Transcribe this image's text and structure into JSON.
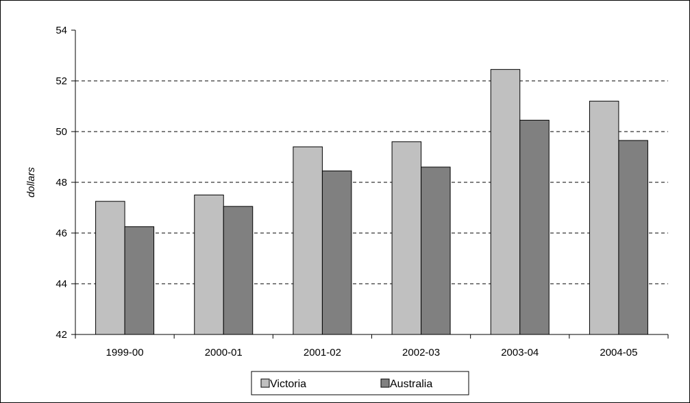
{
  "chart_data": {
    "type": "bar",
    "title": "",
    "xlabel": "",
    "ylabel": "dollars",
    "categories": [
      "1999-00",
      "2000-01",
      "2001-02",
      "2002-03",
      "2003-04",
      "2004-05"
    ],
    "series": [
      {
        "name": "Victoria",
        "values": [
          47.25,
          47.5,
          49.4,
          49.6,
          52.45,
          51.2
        ],
        "color": "#c0c0c0"
      },
      {
        "name": "Australia",
        "values": [
          46.25,
          47.05,
          48.45,
          48.6,
          50.45,
          49.65
        ],
        "color": "#808080"
      }
    ],
    "ylim": [
      42,
      54
    ],
    "yticks": [
      42,
      44,
      46,
      48,
      50,
      52,
      54
    ],
    "grid": "horizontal-dashed",
    "legend": "bottom-center"
  }
}
